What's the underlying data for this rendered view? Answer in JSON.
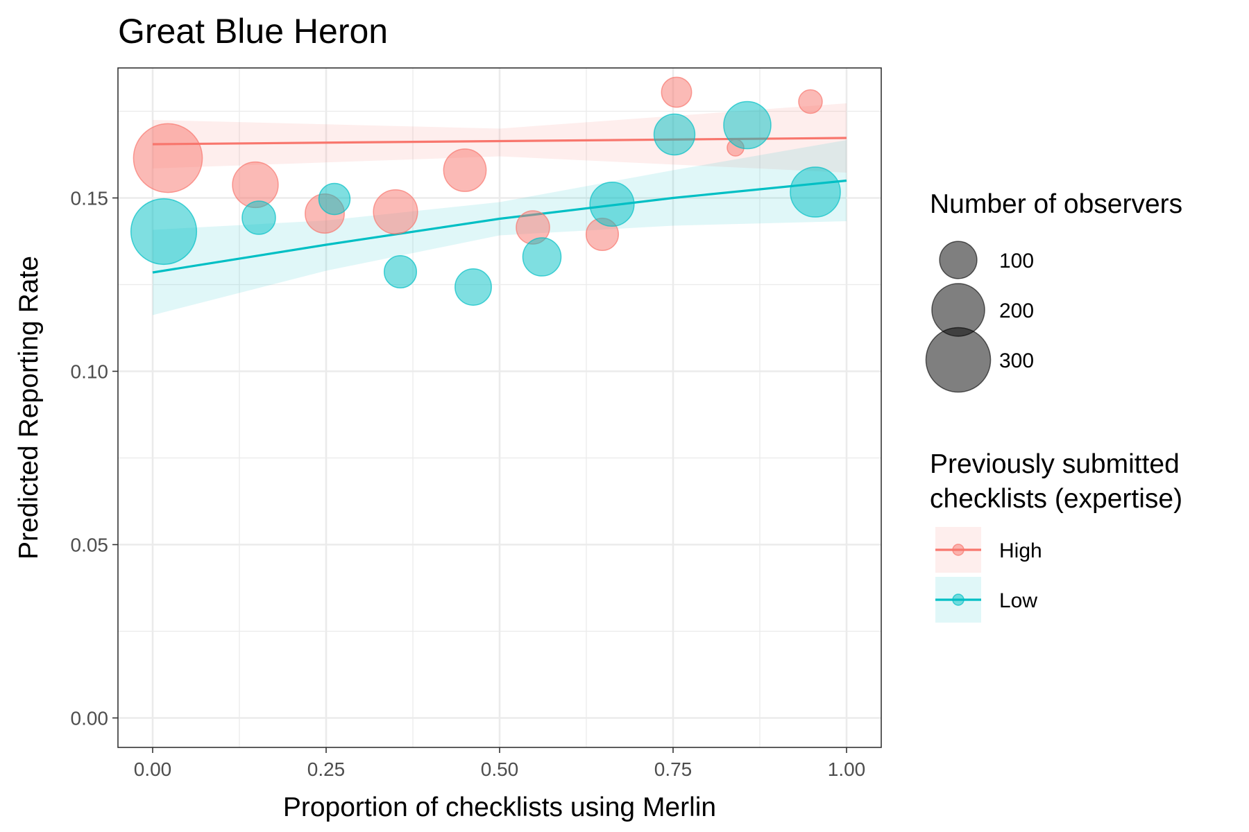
{
  "chart_data": {
    "type": "scatter",
    "title": "Great Blue Heron",
    "xlabel": "Proportion of checklists using Merlin",
    "ylabel": "Predicted Reporting Rate",
    "xlim": [
      -0.05,
      1.05
    ],
    "ylim": [
      -0.0085,
      0.1875
    ],
    "x_ticks": [
      0.0,
      0.25,
      0.5,
      0.75,
      1.0
    ],
    "x_tick_labels": [
      "0.00",
      "0.25",
      "0.50",
      "0.75",
      "1.00"
    ],
    "y_ticks": [
      0.0,
      0.05,
      0.1,
      0.15
    ],
    "y_tick_labels": [
      "0.00",
      "0.05",
      "0.10",
      "0.15"
    ],
    "grid": true,
    "legend_position": "right",
    "size_legend": {
      "title": "Number of observers",
      "entries": [
        {
          "value": 100,
          "label": "100"
        },
        {
          "value": 200,
          "label": "200"
        },
        {
          "value": 300,
          "label": "300"
        }
      ]
    },
    "color_legend": {
      "title_lines": [
        "Previously submitted",
        "checklists (expertise)"
      ]
    },
    "series": [
      {
        "name": "High",
        "color": "#F8766D",
        "points": [
          {
            "x": 0.022,
            "y": 0.1615,
            "n": 340
          },
          {
            "x": 0.148,
            "y": 0.1538,
            "n": 150
          },
          {
            "x": 0.248,
            "y": 0.1455,
            "n": 110
          },
          {
            "x": 0.35,
            "y": 0.146,
            "n": 140
          },
          {
            "x": 0.45,
            "y": 0.158,
            "n": 130
          },
          {
            "x": 0.548,
            "y": 0.1415,
            "n": 80
          },
          {
            "x": 0.648,
            "y": 0.1395,
            "n": 75
          },
          {
            "x": 0.755,
            "y": 0.1805,
            "n": 65
          },
          {
            "x": 0.84,
            "y": 0.1645,
            "n": 20
          },
          {
            "x": 0.948,
            "y": 0.1778,
            "n": 40
          }
        ],
        "fit": {
          "x": [
            0.0,
            1.0
          ],
          "y": [
            0.1655,
            0.1673
          ]
        },
        "band": {
          "x": [
            0.0,
            0.5,
            1.0
          ],
          "lower": [
            0.1585,
            0.162,
            0.1573
          ],
          "upper": [
            0.1725,
            0.17,
            0.1773
          ]
        }
      },
      {
        "name": "Low",
        "color": "#00BFC4",
        "points": [
          {
            "x": 0.016,
            "y": 0.1403,
            "n": 310
          },
          {
            "x": 0.153,
            "y": 0.1443,
            "n": 80
          },
          {
            "x": 0.262,
            "y": 0.1497,
            "n": 70
          },
          {
            "x": 0.357,
            "y": 0.1287,
            "n": 75
          },
          {
            "x": 0.462,
            "y": 0.1243,
            "n": 95
          },
          {
            "x": 0.561,
            "y": 0.133,
            "n": 105
          },
          {
            "x": 0.662,
            "y": 0.1482,
            "n": 140
          },
          {
            "x": 0.752,
            "y": 0.1683,
            "n": 120
          },
          {
            "x": 0.857,
            "y": 0.171,
            "n": 160
          },
          {
            "x": 0.955,
            "y": 0.1517,
            "n": 180
          }
        ],
        "fit": {
          "x": [
            0.0,
            0.25,
            0.5,
            0.75,
            1.0
          ],
          "y": [
            0.1285,
            0.1365,
            0.144,
            0.15,
            0.155
          ]
        },
        "band": {
          "x": [
            0.0,
            0.25,
            0.5,
            0.75,
            1.0
          ],
          "lower": [
            0.1162,
            0.129,
            0.1392,
            0.142,
            0.1433
          ],
          "upper": [
            0.1408,
            0.1435,
            0.1488,
            0.158,
            0.1667
          ]
        }
      }
    ]
  }
}
